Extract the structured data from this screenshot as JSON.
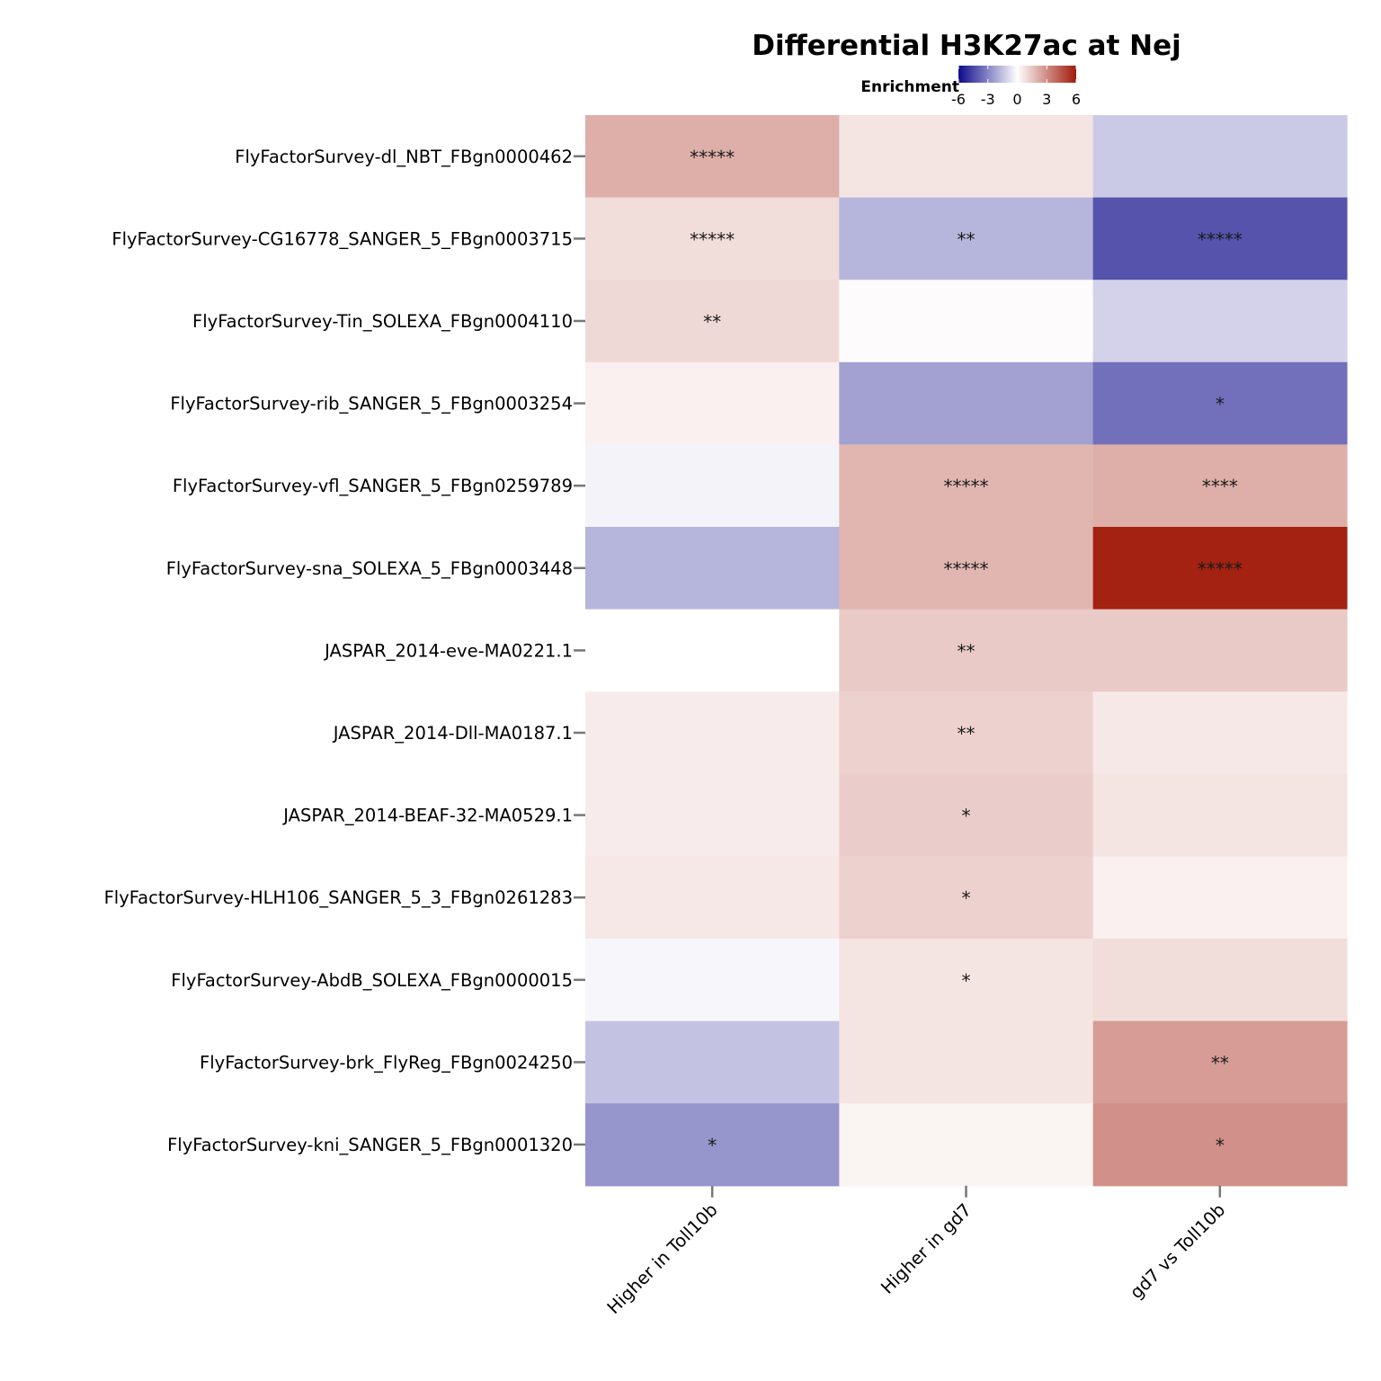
{
  "chart_data": {
    "type": "heatmap",
    "title": "Differential H3K27ac at Nej",
    "legend": {
      "title": "Enrichment",
      "ticks": [
        -6,
        -3,
        0,
        3,
        6
      ],
      "range": [
        -6,
        6
      ],
      "colors": {
        "low": "#0d0a8a",
        "mid": "#ffffff",
        "high": "#a01a0a"
      },
      "position": "top"
    },
    "rows": [
      "FlyFactorSurvey-dl_NBT_FBgn0000462",
      "FlyFactorSurvey-CG16778_SANGER_5_FBgn0003715",
      "FlyFactorSurvey-Tin_SOLEXA_FBgn0004110",
      "FlyFactorSurvey-rib_SANGER_5_FBgn0003254",
      "FlyFactorSurvey-vfl_SANGER_5_FBgn0259789",
      "FlyFactorSurvey-sna_SOLEXA_5_FBgn0003448",
      "JASPAR_2014-eve-MA0221.1",
      "JASPAR_2014-Dll-MA0187.1",
      "JASPAR_2014-BEAF-32-MA0529.1",
      "FlyFactorSurvey-HLH106_SANGER_5_3_FBgn0261283",
      "FlyFactorSurvey-AbdB_SOLEXA_FBgn0000015",
      "FlyFactorSurvey-brk_FlyReg_FBgn0024250",
      "FlyFactorSurvey-kni_SANGER_5_FBgn0001320"
    ],
    "columns": [
      "Higher in Toll10b",
      "Higher in gd7",
      "gd7 vs Toll10b"
    ],
    "values": [
      [
        2.1,
        0.7,
        -1.3
      ],
      [
        0.9,
        -1.8,
        -4.2
      ],
      [
        1.0,
        0.1,
        -1.1
      ],
      [
        0.4,
        -2.3,
        -3.5
      ],
      [
        -0.3,
        1.9,
        2.1
      ],
      [
        -1.8,
        1.9,
        5.8
      ],
      [
        0.0,
        1.4,
        1.4
      ],
      [
        0.5,
        1.2,
        0.6
      ],
      [
        0.5,
        1.3,
        0.7
      ],
      [
        0.6,
        1.2,
        0.4
      ],
      [
        -0.2,
        0.7,
        0.9
      ],
      [
        -1.5,
        0.7,
        2.6
      ],
      [
        -2.6,
        0.3,
        2.9
      ]
    ],
    "significance": [
      [
        "*****",
        "",
        ""
      ],
      [
        "*****",
        "**",
        "*****"
      ],
      [
        "**",
        "",
        ""
      ],
      [
        "",
        "",
        "*"
      ],
      [
        "",
        "*****",
        "****"
      ],
      [
        "",
        "*****",
        "*****"
      ],
      [
        "",
        "**",
        ""
      ],
      [
        "",
        "**",
        ""
      ],
      [
        "",
        "*",
        ""
      ],
      [
        "",
        "*",
        ""
      ],
      [
        "",
        "*",
        ""
      ],
      [
        "",
        "",
        "**"
      ],
      [
        "*",
        "",
        "*"
      ]
    ]
  }
}
